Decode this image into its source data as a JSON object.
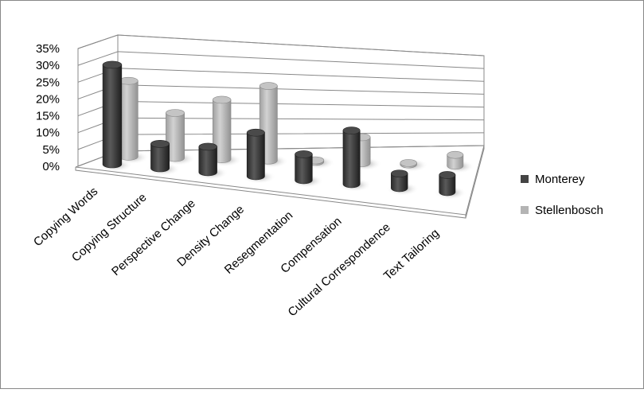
{
  "chart_data": {
    "type": "bar3d",
    "categories": [
      "Copying Words",
      "Copying Structure",
      "Perspective Change",
      "Density Change",
      "Resegmentation",
      "Compensation",
      "Cultural Correspondence",
      "Text Tailoring"
    ],
    "series": [
      {
        "name": "Monterey",
        "color": "#444444",
        "values": [
          30,
          7.5,
          8,
          14,
          8.5,
          18,
          5,
          6
        ]
      },
      {
        "name": "Stellenbosch",
        "color": "#b4b4b4",
        "values": [
          23,
          14,
          19,
          24.5,
          0.5,
          9,
          0.5,
          4
        ]
      }
    ],
    "ylim": [
      0,
      35
    ],
    "yticks": [
      {
        "value": 0,
        "label": "0%"
      },
      {
        "value": 5,
        "label": "5%"
      },
      {
        "value": 10,
        "label": "10%"
      },
      {
        "value": 15,
        "label": "15%"
      },
      {
        "value": 20,
        "label": "20%"
      },
      {
        "value": 25,
        "label": "25%"
      },
      {
        "value": 30,
        "label": "30%"
      },
      {
        "value": 35,
        "label": "35%"
      }
    ],
    "grid": true,
    "legend": "right"
  }
}
